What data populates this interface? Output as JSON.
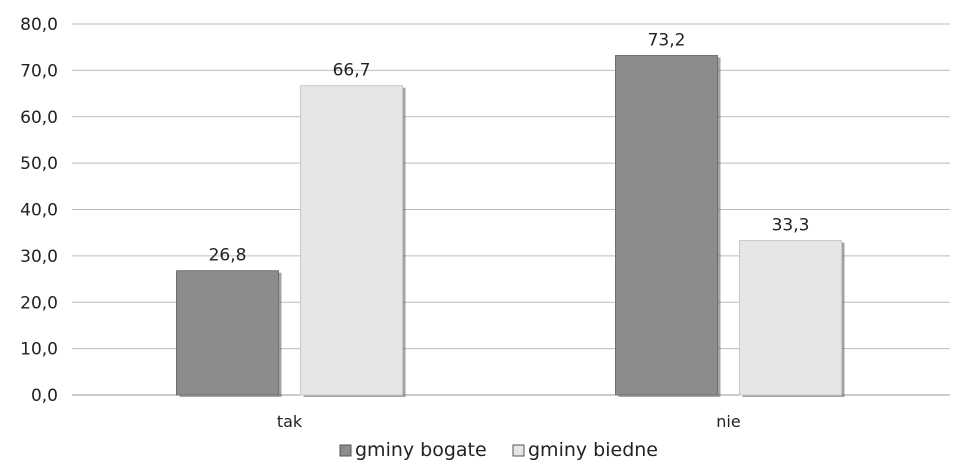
{
  "chart_data": {
    "type": "bar",
    "categories": [
      "tak",
      "nie"
    ],
    "series": [
      {
        "name": "gminy bogate",
        "values": [
          26.8,
          73.2
        ],
        "label_text": [
          "26,8",
          "73,2"
        ],
        "color": "#8c8c8c"
      },
      {
        "name": "gminy biedne",
        "values": [
          66.7,
          33.3
        ],
        "label_text": [
          "66,7",
          "33,3"
        ],
        "color": "#e6e6e6"
      }
    ],
    "ylim": [
      0,
      80
    ],
    "yticks": [
      0,
      10,
      20,
      30,
      40,
      50,
      60,
      70,
      80
    ],
    "ytick_labels": [
      "0,0",
      "10,0",
      "20,0",
      "30,0",
      "40,0",
      "50,0",
      "60,0",
      "70,0",
      "80,0"
    ],
    "grid": true,
    "legend_position": "bottom",
    "title": "",
    "xlabel": "",
    "ylabel": ""
  }
}
